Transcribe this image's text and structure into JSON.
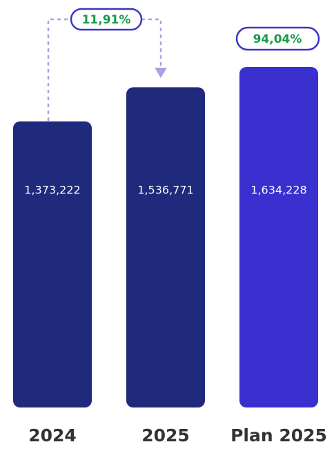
{
  "chart_data": {
    "type": "bar",
    "categories": [
      "2024",
      "2025",
      "Plan 2025"
    ],
    "values": [
      1373222,
      1536771,
      1634228
    ],
    "value_labels": [
      "1,373,222",
      "1,536,771",
      "1,634,228"
    ],
    "colors": [
      "#1f2a7c",
      "#1f2a7c",
      "#3a30d0"
    ],
    "annotations": [
      "11,91%",
      "94,04%"
    ]
  }
}
